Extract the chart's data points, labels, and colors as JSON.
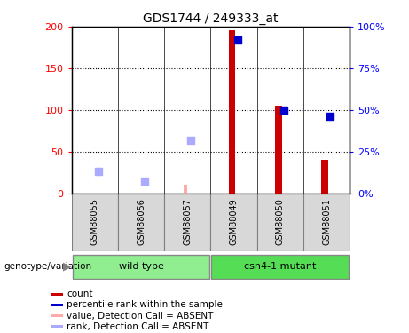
{
  "title": "GDS1744 / 249333_at",
  "samples": [
    "GSM88055",
    "GSM88056",
    "GSM88057",
    "GSM88049",
    "GSM88050",
    "GSM88051"
  ],
  "red_bars": [
    0,
    0,
    0,
    196,
    105,
    40
  ],
  "blue_squares": [
    0,
    0,
    0,
    92,
    50,
    46
  ],
  "pink_bars": [
    0,
    0,
    10,
    0,
    0,
    0
  ],
  "lavender_squares": [
    13,
    7,
    32,
    0,
    0,
    0
  ],
  "ylim_left": [
    0,
    200
  ],
  "ylim_right": [
    0,
    100
  ],
  "yticks_left": [
    0,
    50,
    100,
    150,
    200
  ],
  "yticks_right": [
    0,
    25,
    50,
    75,
    100
  ],
  "ytick_labels_left": [
    "0",
    "50",
    "100",
    "150",
    "200"
  ],
  "ytick_labels_right": [
    "0%",
    "25%",
    "50%",
    "75%",
    "100%"
  ],
  "legend_items": [
    {
      "label": "count",
      "color": "#cc0000"
    },
    {
      "label": "percentile rank within the sample",
      "color": "#0000cc"
    },
    {
      "label": "value, Detection Call = ABSENT",
      "color": "#ffaaaa"
    },
    {
      "label": "rank, Detection Call = ABSENT",
      "color": "#aaaaff"
    }
  ],
  "red_bar_width": 0.15,
  "pink_bar_width": 0.08,
  "marker_size": 35,
  "wt_group_color": "#90EE90",
  "csn_group_color": "#55DD55",
  "sample_bg_color": "#d8d8d8",
  "plot_bg": "#ffffff",
  "dotted_line_color": "#000000"
}
